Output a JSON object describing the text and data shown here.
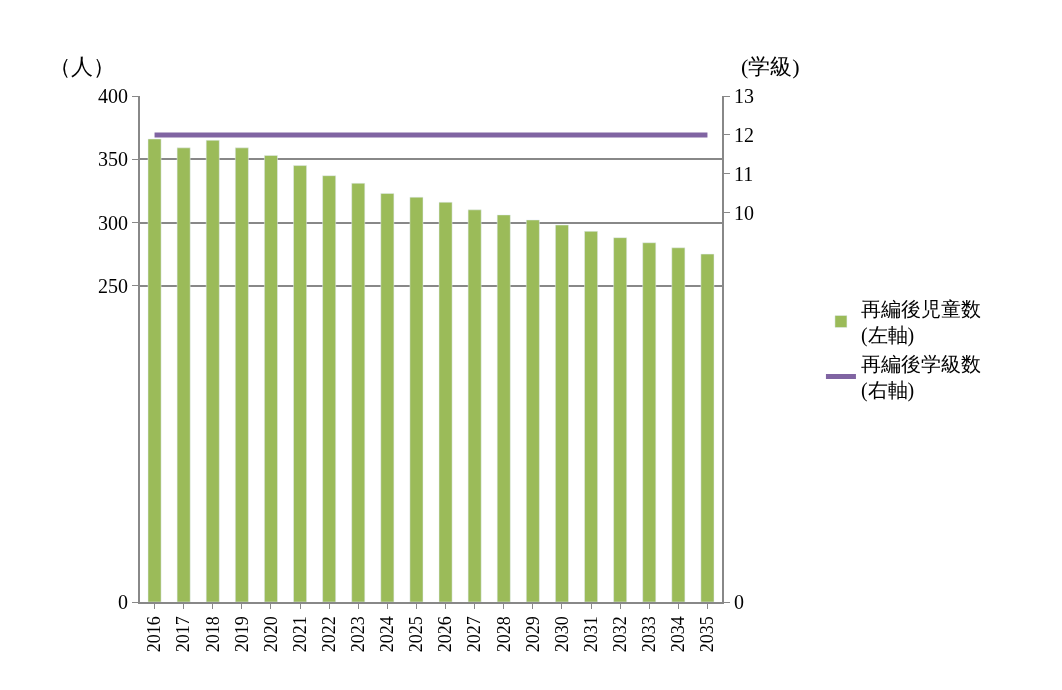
{
  "chart_data": {
    "type": "bar",
    "ylabel": "（人）",
    "y2label": "(学級)",
    "categories": [
      "2016",
      "2017",
      "2018",
      "2019",
      "2020",
      "2021",
      "2022",
      "2023",
      "2024",
      "2025",
      "2026",
      "2027",
      "2028",
      "2029",
      "2030",
      "2031",
      "2032",
      "2033",
      "2034",
      "2035"
    ],
    "series": [
      {
        "name": "再編後児童数\n(左軸)",
        "color": "#9bbb59",
        "values": [
          366,
          359,
          365,
          359,
          353,
          345,
          337,
          331,
          323,
          320,
          316,
          310,
          306,
          302,
          298,
          293,
          288,
          284,
          280,
          275
        ]
      },
      {
        "name": "再編後学級数\n(右軸)",
        "type": "line",
        "axis": "y2",
        "color": "#8064a2",
        "values": [
          12,
          12,
          12,
          12,
          12,
          12,
          12,
          12,
          12,
          12,
          12,
          12,
          12,
          12,
          12,
          12,
          12,
          12,
          12,
          12
        ]
      }
    ],
    "ylim": [
      0,
      400
    ],
    "yticks": [
      0,
      250,
      300,
      350,
      400
    ],
    "y2lim": [
      0,
      13
    ],
    "y2ticks": [
      0,
      10,
      11,
      12,
      13
    ],
    "grid": "y",
    "legend": "right",
    "marker": "none",
    "line_style": "solid"
  }
}
